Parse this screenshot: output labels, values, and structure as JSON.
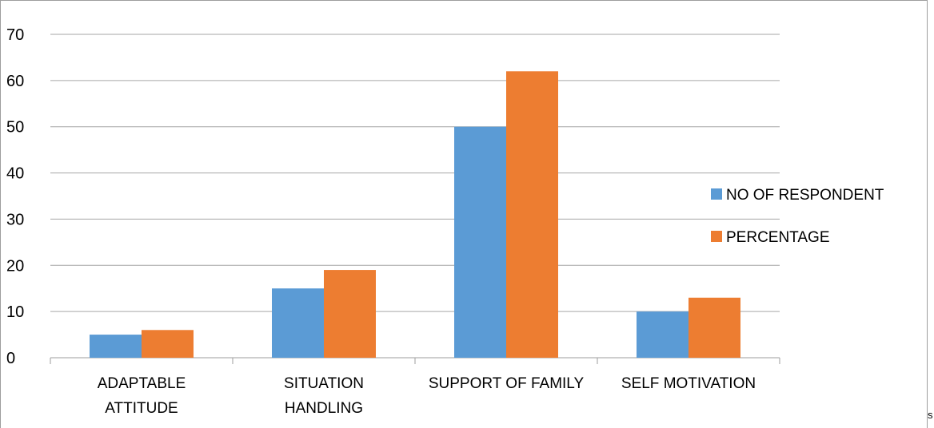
{
  "chart_data": {
    "type": "bar",
    "title": "",
    "xlabel": "",
    "ylabel": "",
    "categories": [
      [
        "ADAPTABLE",
        "ATTITUDE"
      ],
      [
        "SITUATION",
        "HANDLING"
      ],
      [
        "SUPPORT OF FAMILY"
      ],
      [
        "SELF MOTIVATION"
      ]
    ],
    "series": [
      {
        "name": "NO OF RESPONDENT",
        "values": [
          5,
          15,
          50,
          10
        ],
        "color": "#5B9BD5"
      },
      {
        "name": "PERCENTAGE",
        "values": [
          6,
          19,
          62,
          13
        ],
        "color": "#ED7D31"
      }
    ],
    "ylim": [
      0,
      70
    ],
    "yticks": [
      0,
      10,
      20,
      30,
      40,
      50,
      60,
      70
    ],
    "grid": true,
    "legend_position": "right"
  },
  "stray_text": "s"
}
